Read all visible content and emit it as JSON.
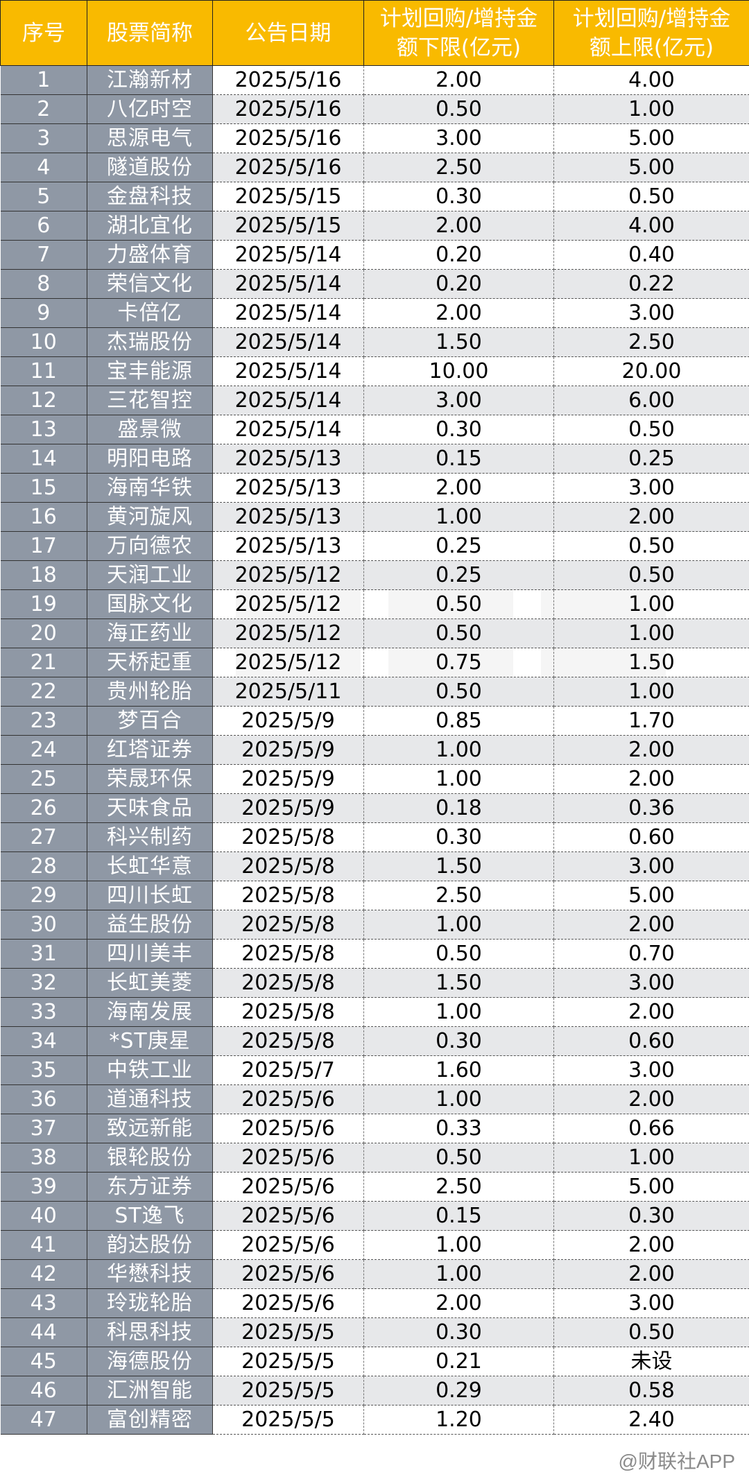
{
  "headers": [
    "序号",
    "股票简称",
    "公告日期",
    "计划回购/增持金额下限(亿元)",
    "计划回购/增持金额上限(亿元)"
  ],
  "rows": [
    [
      "1",
      "江瀚新材",
      "2025/5/16",
      "2.00",
      "4.00"
    ],
    [
      "2",
      "八亿时空",
      "2025/5/16",
      "0.50",
      "1.00"
    ],
    [
      "3",
      "思源电气",
      "2025/5/16",
      "3.00",
      "5.00"
    ],
    [
      "4",
      "隧道股份",
      "2025/5/16",
      "2.50",
      "5.00"
    ],
    [
      "5",
      "金盘科技",
      "2025/5/15",
      "0.30",
      "0.50"
    ],
    [
      "6",
      "湖北宜化",
      "2025/5/15",
      "2.00",
      "4.00"
    ],
    [
      "7",
      "力盛体育",
      "2025/5/14",
      "0.20",
      "0.40"
    ],
    [
      "8",
      "荣信文化",
      "2025/5/14",
      "0.20",
      "0.22"
    ],
    [
      "9",
      "卡倍亿",
      "2025/5/14",
      "2.00",
      "3.00"
    ],
    [
      "10",
      "杰瑞股份",
      "2025/5/14",
      "1.50",
      "2.50"
    ],
    [
      "11",
      "宝丰能源",
      "2025/5/14",
      "10.00",
      "20.00"
    ],
    [
      "12",
      "三花智控",
      "2025/5/14",
      "3.00",
      "6.00"
    ],
    [
      "13",
      "盛景微",
      "2025/5/14",
      "0.30",
      "0.50"
    ],
    [
      "14",
      "明阳电路",
      "2025/5/13",
      "0.15",
      "0.25"
    ],
    [
      "15",
      "海南华铁",
      "2025/5/13",
      "2.00",
      "3.00"
    ],
    [
      "16",
      "黄河旋风",
      "2025/5/13",
      "1.00",
      "2.00"
    ],
    [
      "17",
      "万向德农",
      "2025/5/13",
      "0.25",
      "0.50"
    ],
    [
      "18",
      "天润工业",
      "2025/5/12",
      "0.25",
      "0.50"
    ],
    [
      "19",
      "国脉文化",
      "2025/5/12",
      "0.50",
      "1.00"
    ],
    [
      "20",
      "海正药业",
      "2025/5/12",
      "0.50",
      "1.00"
    ],
    [
      "21",
      "天桥起重",
      "2025/5/12",
      "0.75",
      "1.50"
    ],
    [
      "22",
      "贵州轮胎",
      "2025/5/11",
      "0.50",
      "1.00"
    ],
    [
      "23",
      "梦百合",
      "2025/5/9",
      "0.85",
      "1.70"
    ],
    [
      "24",
      "红塔证券",
      "2025/5/9",
      "1.00",
      "2.00"
    ],
    [
      "25",
      "荣晟环保",
      "2025/5/9",
      "1.00",
      "2.00"
    ],
    [
      "26",
      "天味食品",
      "2025/5/9",
      "0.18",
      "0.36"
    ],
    [
      "27",
      "科兴制药",
      "2025/5/8",
      "0.30",
      "0.60"
    ],
    [
      "28",
      "长虹华意",
      "2025/5/8",
      "1.50",
      "3.00"
    ],
    [
      "29",
      "四川长虹",
      "2025/5/8",
      "2.50",
      "5.00"
    ],
    [
      "30",
      "益生股份",
      "2025/5/8",
      "1.00",
      "2.00"
    ],
    [
      "31",
      "四川美丰",
      "2025/5/8",
      "0.50",
      "0.70"
    ],
    [
      "32",
      "长虹美菱",
      "2025/5/8",
      "1.50",
      "3.00"
    ],
    [
      "33",
      "海南发展",
      "2025/5/8",
      "1.00",
      "2.00"
    ],
    [
      "34",
      "*ST庚星",
      "2025/5/8",
      "0.30",
      "0.60"
    ],
    [
      "35",
      "中铁工业",
      "2025/5/7",
      "1.60",
      "3.00"
    ],
    [
      "36",
      "道通科技",
      "2025/5/6",
      "1.00",
      "2.00"
    ],
    [
      "37",
      "致远新能",
      "2025/5/6",
      "0.33",
      "0.66"
    ],
    [
      "38",
      "银轮股份",
      "2025/5/6",
      "0.50",
      "1.00"
    ],
    [
      "39",
      "东方证券",
      "2025/5/6",
      "2.50",
      "5.00"
    ],
    [
      "40",
      "ST逸飞",
      "2025/5/6",
      "0.15",
      "0.30"
    ],
    [
      "41",
      "韵达股份",
      "2025/5/6",
      "1.00",
      "2.00"
    ],
    [
      "42",
      "华懋科技",
      "2025/5/6",
      "1.00",
      "2.00"
    ],
    [
      "43",
      "玲珑轮胎",
      "2025/5/6",
      "2.00",
      "3.00"
    ],
    [
      "44",
      "科思科技",
      "2025/5/5",
      "0.30",
      "0.50"
    ],
    [
      "45",
      "海德股份",
      "2025/5/5",
      "0.21",
      "未设"
    ],
    [
      "46",
      "汇洲智能",
      "2025/5/5",
      "0.29",
      "0.58"
    ],
    [
      "47",
      "富创精密",
      "2025/5/5",
      "1.20",
      "2.40"
    ]
  ],
  "watermark": "财联社",
  "watermark_app": "@财联社APP",
  "colors": {
    "header_bg": "#F9BA00",
    "index_bg": "#8F98A5",
    "alt_row_bg": "#E7E8EA"
  }
}
